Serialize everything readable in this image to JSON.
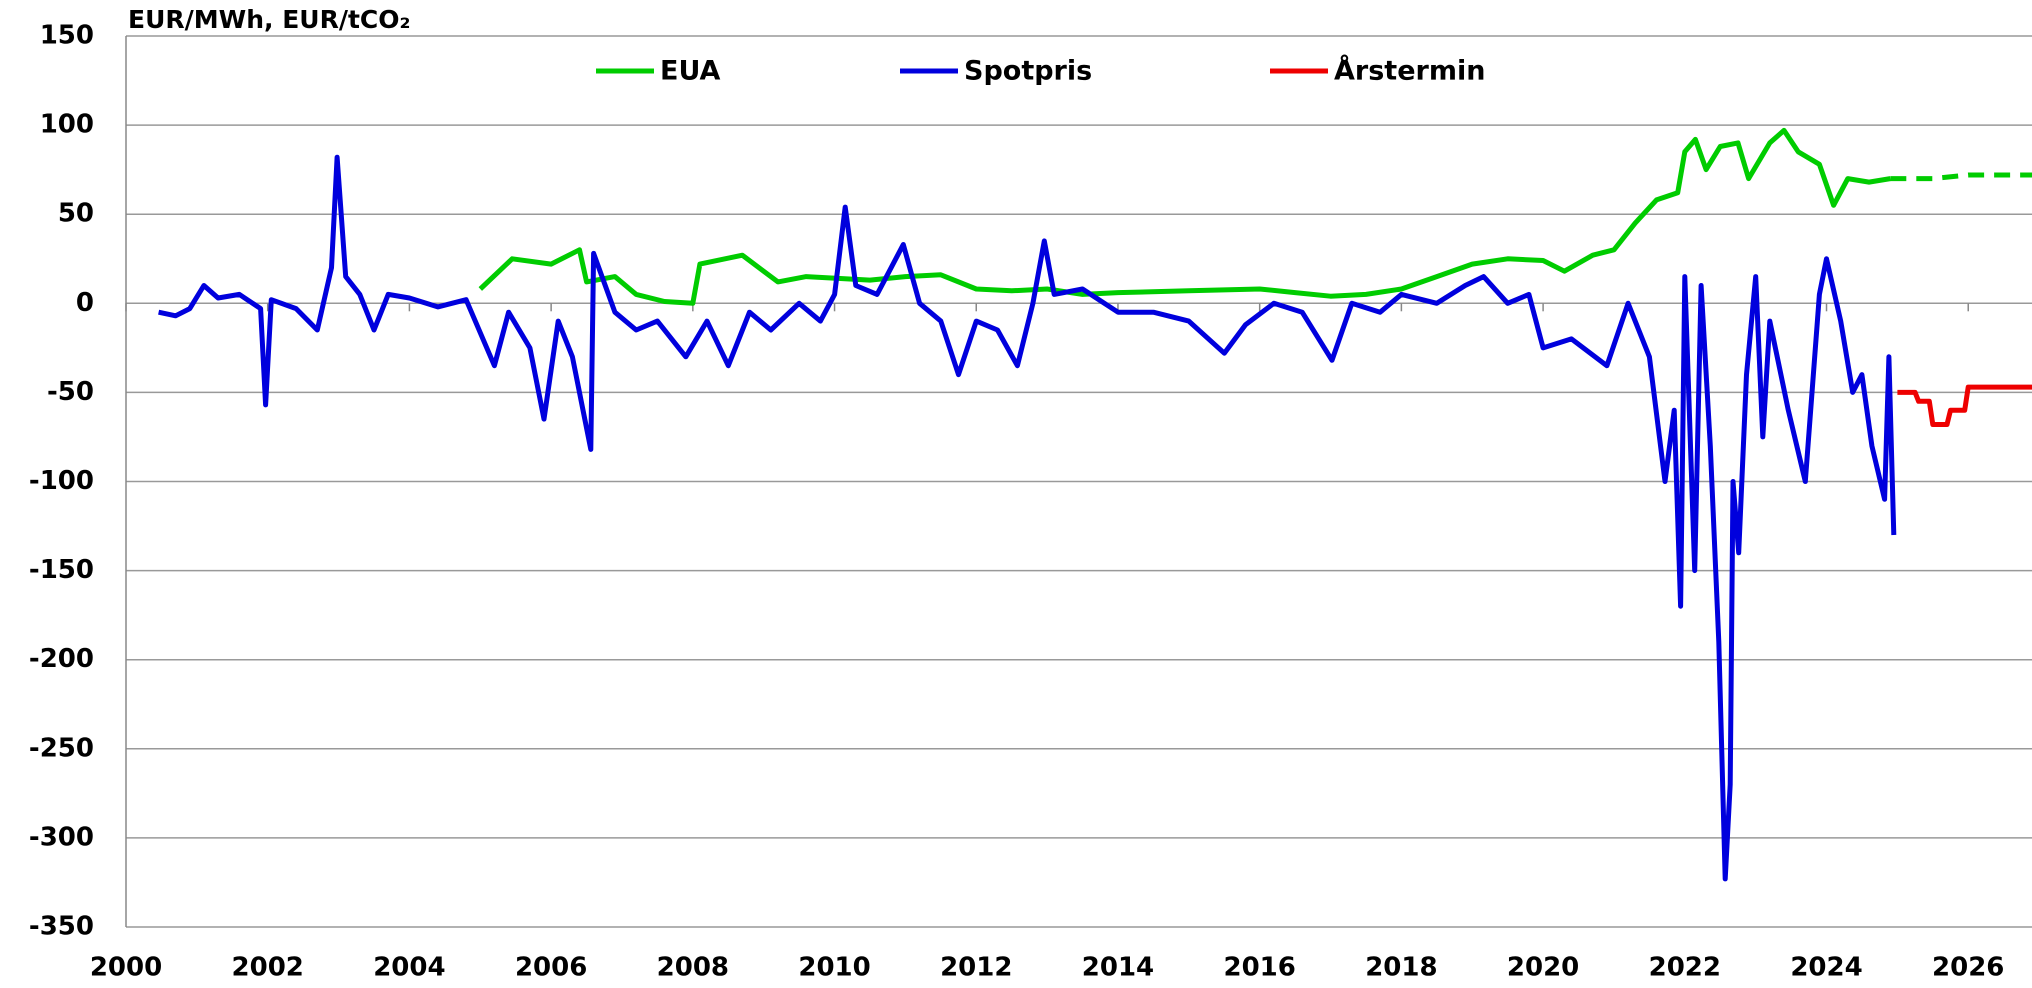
{
  "chart_data": {
    "type": "line",
    "title": "EUR/MWh, EUR/tCO₂",
    "xlim": [
      2000,
      2026.9
    ],
    "xticks": [
      2000,
      2002,
      2004,
      2006,
      2008,
      2010,
      2012,
      2014,
      2016,
      2018,
      2020,
      2022,
      2024,
      2026
    ],
    "ylim": [
      -350,
      150
    ],
    "yticks": [
      -350,
      -300,
      -250,
      -200,
      -150,
      -100,
      -50,
      0,
      50,
      100,
      150
    ],
    "grid": true,
    "legend": "top",
    "series": [
      {
        "name": "EUA",
        "color": "#00cc00",
        "x": [
          2005.0,
          2005.45,
          2006.0,
          2006.4,
          2006.5,
          2006.9,
          2007.2,
          2007.6,
          2008.0,
          2008.1,
          2008.7,
          2009.2,
          2009.6,
          2010.5,
          2011.0,
          2011.5,
          2012.0,
          2012.5,
          2013.0,
          2013.5,
          2014.0,
          2015.0,
          2016.0,
          2016.5,
          2017.0,
          2017.5,
          2018.0,
          2018.5,
          2019.0,
          2019.5,
          2020.0,
          2020.3,
          2020.7,
          2021.0,
          2021.3,
          2021.6,
          2021.9,
          2022.0,
          2022.15,
          2022.3,
          2022.5,
          2022.75,
          2022.9,
          2023.2,
          2023.4,
          2023.6,
          2023.9,
          2024.1,
          2024.3,
          2024.6,
          2024.9
        ],
        "values": [
          8,
          25,
          22,
          30,
          12,
          15,
          5,
          1,
          0,
          22,
          27,
          12,
          15,
          13,
          15,
          16,
          8,
          7,
          8,
          5,
          6,
          7,
          8,
          6,
          4,
          5,
          8,
          15,
          22,
          25,
          24,
          18,
          27,
          30,
          45,
          58,
          62,
          85,
          92,
          75,
          88,
          90,
          70,
          90,
          97,
          85,
          78,
          55,
          70,
          68,
          70
        ]
      },
      {
        "color": "#00cc00",
        "dash": true,
        "x": [
          2024.9,
          2025.5,
          2026.0,
          2026.9
        ],
        "values": [
          70,
          70,
          72,
          72
        ]
      },
      {
        "name": "Spotpris",
        "color": "#0000dd",
        "x": [
          2000.46,
          2000.7,
          2000.9,
          2001.1,
          2001.3,
          2001.6,
          2001.9,
          2001.97,
          2002.05,
          2002.4,
          2002.7,
          2002.9,
          2002.98,
          2003.1,
          2003.3,
          2003.5,
          2003.7,
          2004.0,
          2004.4,
          2004.8,
          2005.2,
          2005.4,
          2005.7,
          2005.9,
          2006.1,
          2006.3,
          2006.56,
          2006.6,
          2006.9,
          2007.2,
          2007.5,
          2007.9,
          2008.2,
          2008.5,
          2008.8,
          2009.1,
          2009.5,
          2009.8,
          2010.0,
          2010.15,
          2010.3,
          2010.6,
          2010.97,
          2011.2,
          2011.5,
          2011.75,
          2012.0,
          2012.3,
          2012.58,
          2012.8,
          2012.96,
          2013.1,
          2013.5,
          2014.0,
          2014.5,
          2015.0,
          2015.5,
          2015.8,
          2016.2,
          2016.6,
          2017.02,
          2017.3,
          2017.7,
          2018.0,
          2018.5,
          2018.9,
          2019.16,
          2019.5,
          2019.8,
          2020.0,
          2020.4,
          2020.9,
          2021.2,
          2021.5,
          2021.72,
          2021.85,
          2021.94,
          2022.0,
          2022.14,
          2022.23,
          2022.36,
          2022.48,
          2022.57,
          2022.64,
          2022.68,
          2022.76,
          2022.87,
          2023.0,
          2023.1,
          2023.2,
          2023.46,
          2023.7,
          2023.9,
          2024.0,
          2024.2,
          2024.37,
          2024.5,
          2024.64,
          2024.82,
          2024.88,
          2024.95
        ],
        "values": [
          -5,
          -7,
          -3,
          10,
          3,
          5,
          -3,
          -57,
          2,
          -3,
          -15,
          20,
          82,
          15,
          5,
          -15,
          5,
          3,
          -2,
          2,
          -35,
          -5,
          -25,
          -65,
          -10,
          -30,
          -82,
          28,
          -5,
          -15,
          -10,
          -30,
          -10,
          -35,
          -5,
          -15,
          0,
          -10,
          5,
          54,
          10,
          5,
          33,
          0,
          -10,
          -40,
          -10,
          -15,
          -35,
          0,
          35,
          5,
          8,
          -5,
          -5,
          -10,
          -28,
          -12,
          0,
          -5,
          -32,
          0,
          -5,
          5,
          0,
          10,
          15,
          0,
          5,
          -25,
          -20,
          -35,
          0,
          -30,
          -100,
          -60,
          -170,
          15,
          -150,
          10,
          -80,
          -190,
          -323,
          -270,
          -100,
          -140,
          -40,
          15,
          -75,
          -10,
          -60,
          -100,
          5,
          25,
          -10,
          -50,
          -40,
          -80,
          -110,
          -30,
          -130
        ]
      },
      {
        "name": "Årstermin",
        "color": "#ee0000",
        "x": [
          2025.0,
          2025.25,
          2025.3,
          2025.45,
          2025.5,
          2025.7,
          2025.75,
          2025.95,
          2026.0,
          2026.9
        ],
        "values": [
          -50,
          -50,
          -55,
          -55,
          -68,
          -68,
          -60,
          -60,
          -47,
          -47
        ]
      }
    ]
  }
}
